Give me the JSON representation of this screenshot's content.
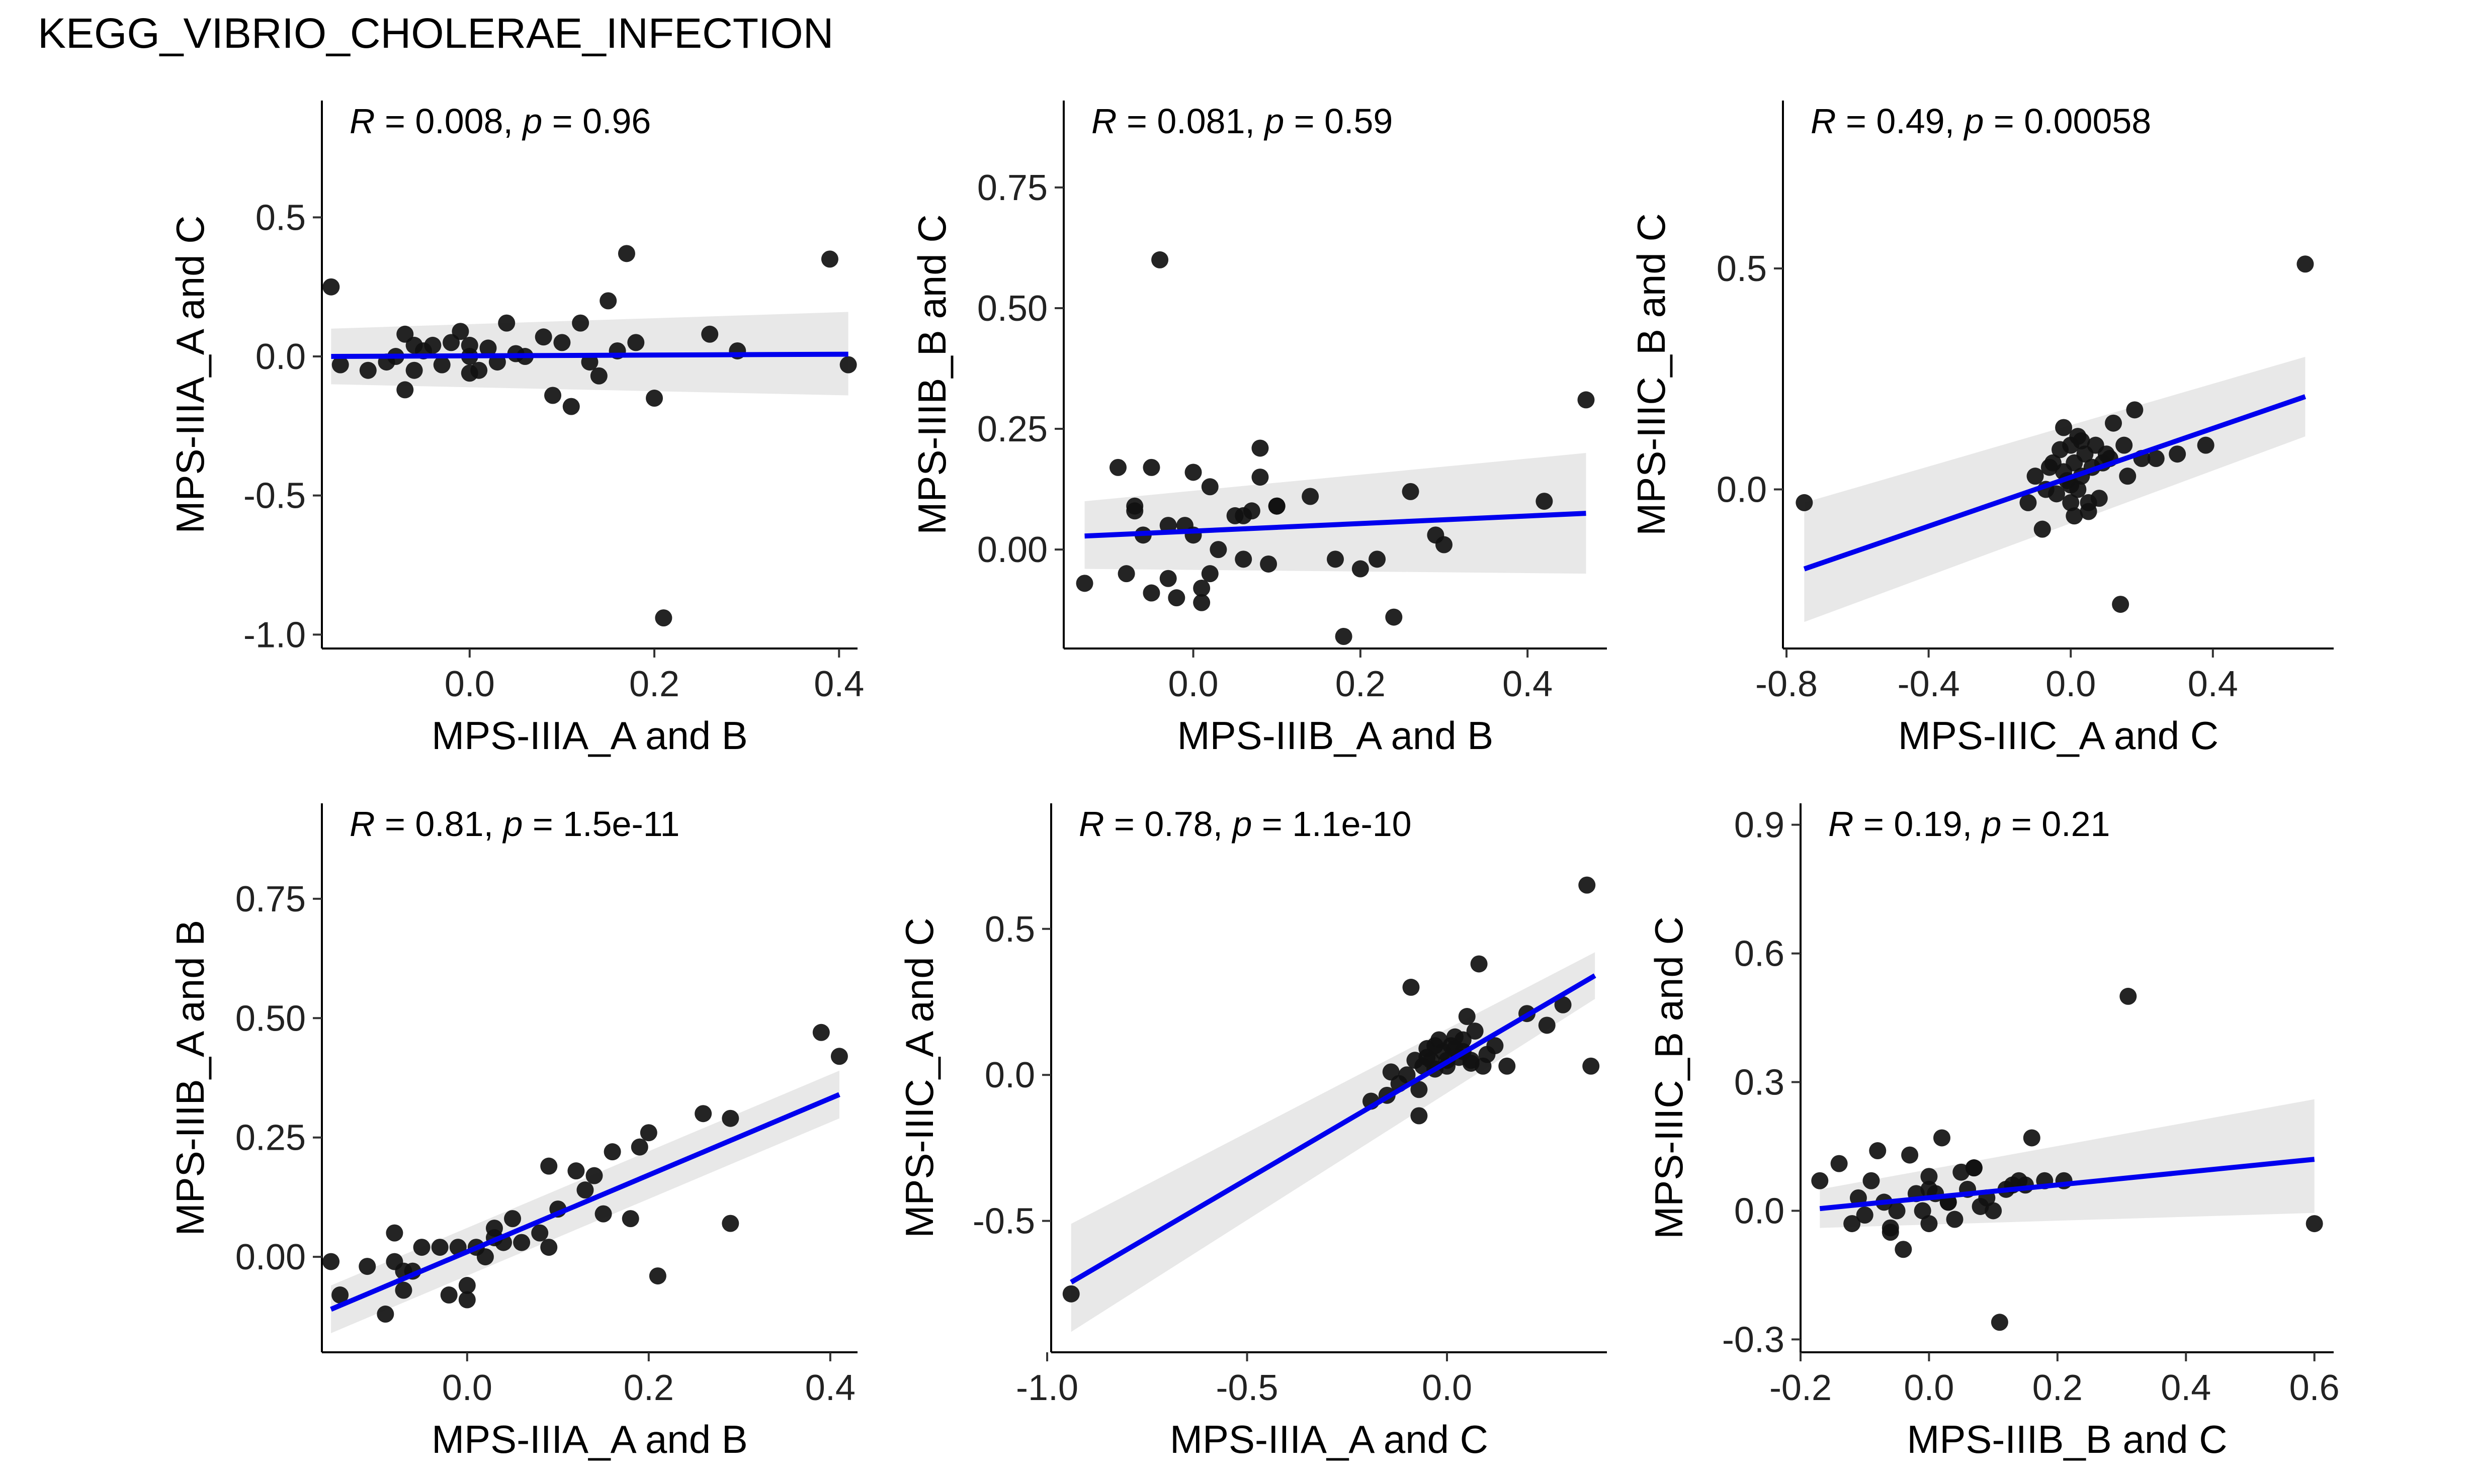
{
  "title": "KEGG_VIBRIO_CHOLERAE_INFECTION",
  "chart_data": [
    {
      "type": "scatter",
      "xlabel": "MPS-IIIA_A and B",
      "ylabel": "MPS-IIIA_A and C",
      "stat": {
        "r_label": "R",
        "r_value": "0.008",
        "p_label": "p",
        "p_value": "0.96"
      },
      "xlim": [
        -0.16,
        0.42
      ],
      "ylim": [
        -1.05,
        0.92
      ],
      "xticks": [
        0.0,
        0.2,
        0.4
      ],
      "xtick_labels": [
        "0.0",
        "0.2",
        "0.4"
      ],
      "yticks": [
        0.5,
        0.0,
        -0.5,
        -1.0
      ],
      "ytick_labels": [
        "0.5",
        "0.0",
        "-0.5",
        "-1.0"
      ],
      "fit": {
        "x": [
          -0.15,
          0.41
        ],
        "y": [
          0.0,
          0.008
        ]
      },
      "band": {
        "upper": [
          0.1,
          0.16
        ],
        "lower": [
          -0.1,
          -0.14
        ]
      },
      "points": {
        "x": [
          -0.15,
          -0.14,
          -0.11,
          -0.09,
          -0.08,
          -0.07,
          -0.07,
          -0.06,
          -0.05,
          -0.04,
          -0.03,
          -0.02,
          -0.01,
          0.0,
          0.0,
          0.01,
          0.02,
          0.03,
          0.04,
          0.05,
          0.08,
          0.09,
          0.1,
          0.11,
          0.12,
          0.13,
          0.15,
          0.16,
          0.17,
          0.18,
          0.2,
          0.21,
          0.26,
          0.29,
          0.39,
          0.41,
          -0.06,
          0.06,
          0.14,
          0.0
        ],
        "y": [
          0.25,
          -0.03,
          -0.05,
          -0.02,
          0.0,
          0.08,
          -0.12,
          -0.05,
          0.02,
          0.04,
          -0.03,
          0.05,
          0.09,
          0.0,
          -0.06,
          -0.05,
          0.03,
          -0.02,
          0.12,
          0.01,
          0.07,
          -0.14,
          0.05,
          -0.18,
          0.12,
          -0.02,
          0.2,
          0.02,
          0.37,
          0.05,
          -0.15,
          -0.94,
          0.08,
          0.02,
          0.35,
          -0.03,
          0.04,
          0.0,
          -0.07,
          0.04
        ]
      }
    },
    {
      "type": "scatter",
      "xlabel": "MPS-IIIB_A and B",
      "ylabel": "MPS-IIIB_B and C",
      "stat": {
        "r_label": "R",
        "r_value": "0.081",
        "p_label": "p",
        "p_value": "0.59"
      },
      "xlim": [
        -0.155,
        0.495
      ],
      "ylim": [
        -0.205,
        0.93
      ],
      "xticks": [
        0.0,
        0.2,
        0.4
      ],
      "xtick_labels": [
        "0.0",
        "0.2",
        "0.4"
      ],
      "yticks": [
        0.75,
        0.5,
        0.25,
        0.0
      ],
      "ytick_labels": [
        "0.75",
        "0.50",
        "0.25",
        "0.00"
      ],
      "fit": {
        "x": [
          -0.13,
          0.47
        ],
        "y": [
          0.028,
          0.075
        ]
      },
      "band": {
        "upper": [
          0.1,
          0.2
        ],
        "lower": [
          -0.04,
          -0.05
        ]
      },
      "points": {
        "x": [
          -0.13,
          -0.09,
          -0.08,
          -0.07,
          -0.06,
          -0.05,
          -0.05,
          -0.04,
          -0.03,
          -0.02,
          -0.01,
          0.0,
          0.0,
          0.01,
          0.01,
          0.02,
          0.03,
          0.05,
          0.06,
          0.07,
          0.08,
          0.08,
          0.09,
          0.1,
          0.14,
          0.17,
          0.18,
          0.2,
          0.22,
          0.24,
          0.26,
          0.29,
          0.3,
          0.42,
          0.47,
          -0.03,
          0.06,
          0.02,
          -0.07,
          0.1
        ],
        "y": [
          -0.07,
          0.17,
          -0.05,
          0.09,
          0.03,
          0.17,
          -0.09,
          0.6,
          -0.06,
          -0.1,
          0.05,
          0.16,
          0.03,
          -0.08,
          -0.11,
          0.13,
          0.0,
          0.07,
          -0.02,
          0.08,
          0.21,
          0.15,
          -0.03,
          0.09,
          0.11,
          -0.02,
          -0.18,
          -0.04,
          -0.02,
          -0.14,
          0.12,
          0.03,
          0.01,
          0.1,
          0.31,
          0.05,
          0.07,
          -0.05,
          0.08,
          0.09
        ]
      }
    },
    {
      "type": "scatter",
      "xlabel": "MPS-IIIC_A and C",
      "ylabel": "MPS-IIIC_B and C",
      "stat": {
        "r_label": "R",
        "r_value": "0.49",
        "p_label": "p",
        "p_value": "0.00058"
      },
      "xlim": [
        -0.81,
        0.74
      ],
      "ylim": [
        -0.36,
        0.88
      ],
      "xticks": [
        -0.8,
        -0.4,
        0.0,
        0.4
      ],
      "xtick_labels": [
        "-0.8",
        "-0.4",
        "0.0",
        "0.4"
      ],
      "yticks": [
        0.5,
        0.0
      ],
      "ytick_labels": [
        "0.5",
        "0.0"
      ],
      "fit": {
        "x": [
          -0.75,
          0.66
        ],
        "y": [
          -0.18,
          0.21
        ]
      },
      "band": {
        "upper": [
          -0.03,
          0.3
        ],
        "lower": [
          -0.3,
          0.12
        ]
      },
      "points": {
        "x": [
          -0.75,
          -0.12,
          -0.1,
          -0.08,
          -0.07,
          -0.06,
          -0.05,
          -0.04,
          -0.03,
          -0.02,
          -0.01,
          0.0,
          0.0,
          0.01,
          0.01,
          0.02,
          0.02,
          0.03,
          0.04,
          0.05,
          0.06,
          0.07,
          0.08,
          0.09,
          0.1,
          0.12,
          0.14,
          0.16,
          0.18,
          0.2,
          0.24,
          0.3,
          0.38,
          0.66,
          -0.02,
          0.05,
          0.0,
          0.11,
          0.15,
          0.03
        ],
        "y": [
          -0.03,
          -0.03,
          0.03,
          -0.09,
          0.0,
          0.05,
          0.06,
          -0.01,
          0.09,
          0.14,
          0.02,
          0.1,
          -0.03,
          0.06,
          -0.06,
          0.12,
          0.0,
          0.03,
          0.08,
          -0.05,
          0.05,
          0.1,
          -0.02,
          0.06,
          0.08,
          0.15,
          -0.26,
          0.03,
          0.18,
          0.07,
          0.07,
          0.08,
          0.1,
          0.51,
          0.04,
          -0.03,
          0.01,
          0.07,
          0.1,
          0.11
        ]
      }
    },
    {
      "type": "scatter",
      "xlabel": "MPS-IIIA_A and B",
      "ylabel": "MPS-IIIB_A and B",
      "stat": {
        "r_label": "R",
        "r_value": "0.81",
        "p_label": "p",
        "p_value": "1.5e-11"
      },
      "xlim": [
        -0.16,
        0.43
      ],
      "ylim": [
        -0.2,
        0.95
      ],
      "xticks": [
        0.0,
        0.2,
        0.4
      ],
      "xtick_labels": [
        "0.0",
        "0.2",
        "0.4"
      ],
      "yticks": [
        0.75,
        0.5,
        0.25,
        0.0
      ],
      "ytick_labels": [
        "0.75",
        "0.50",
        "0.25",
        "0.00"
      ],
      "fit": {
        "x": [
          -0.15,
          0.41
        ],
        "y": [
          -0.11,
          0.34
        ]
      },
      "band": {
        "upper": [
          -0.06,
          0.39
        ],
        "lower": [
          -0.16,
          0.29
        ]
      },
      "points": {
        "x": [
          -0.15,
          -0.14,
          -0.11,
          -0.09,
          -0.08,
          -0.07,
          -0.07,
          -0.06,
          -0.05,
          -0.03,
          -0.02,
          -0.01,
          0.0,
          0.0,
          0.01,
          0.02,
          0.03,
          0.04,
          0.05,
          0.06,
          0.08,
          0.09,
          0.09,
          0.1,
          0.12,
          0.13,
          0.14,
          0.15,
          0.16,
          0.18,
          0.19,
          0.2,
          0.21,
          0.26,
          0.29,
          0.29,
          0.39,
          0.41,
          -0.08,
          0.03
        ],
        "y": [
          -0.01,
          -0.08,
          -0.02,
          -0.12,
          0.05,
          -0.07,
          -0.03,
          -0.03,
          0.02,
          0.02,
          -0.08,
          0.02,
          -0.06,
          -0.09,
          0.02,
          0.0,
          0.06,
          0.03,
          0.08,
          0.03,
          0.05,
          0.02,
          0.19,
          0.1,
          0.18,
          0.14,
          0.17,
          0.09,
          0.22,
          0.08,
          0.23,
          0.26,
          -0.04,
          0.3,
          0.07,
          0.29,
          0.47,
          0.42,
          -0.01,
          0.04
        ]
      }
    },
    {
      "type": "scatter",
      "xlabel": "MPS-IIIA_A and C",
      "ylabel": "MPS-IIIC_A and C",
      "stat": {
        "r_label": "R",
        "r_value": "0.78",
        "p_label": "p",
        "p_value": "1.1e-10"
      },
      "xlim": [
        -0.99,
        0.4
      ],
      "ylim": [
        -0.95,
        0.93
      ],
      "xticks": [
        -1.0,
        -0.5,
        0.0
      ],
      "xtick_labels": [
        "-1.0",
        "-0.5",
        "0.0"
      ],
      "yticks": [
        0.5,
        0.0,
        -0.5
      ],
      "ytick_labels": [
        "0.5",
        "0.0",
        "-0.5"
      ],
      "fit": {
        "x": [
          -0.94,
          0.37
        ],
        "y": [
          -0.71,
          0.34
        ]
      },
      "band": {
        "upper": [
          -0.51,
          0.42
        ],
        "lower": [
          -0.88,
          0.26
        ]
      },
      "points": {
        "x": [
          -0.94,
          -0.19,
          -0.15,
          -0.14,
          -0.12,
          -0.1,
          -0.09,
          -0.08,
          -0.07,
          -0.06,
          -0.05,
          -0.04,
          -0.03,
          -0.02,
          -0.01,
          0.0,
          0.01,
          0.02,
          0.03,
          0.04,
          0.05,
          0.06,
          0.07,
          0.08,
          0.09,
          0.1,
          0.12,
          0.15,
          0.2,
          0.25,
          0.29,
          0.35,
          0.36,
          -0.07,
          -0.03,
          0.0,
          0.04,
          -0.05,
          0.02,
          0.06
        ],
        "y": [
          -0.75,
          -0.09,
          -0.07,
          0.01,
          -0.03,
          0.0,
          0.3,
          0.05,
          -0.14,
          0.03,
          0.09,
          0.05,
          0.02,
          0.12,
          0.08,
          0.05,
          0.1,
          0.13,
          0.06,
          0.08,
          0.2,
          0.04,
          0.15,
          0.38,
          0.03,
          0.07,
          0.1,
          0.03,
          0.21,
          0.17,
          0.24,
          0.65,
          0.03,
          -0.05,
          0.1,
          0.03,
          0.12,
          0.06,
          0.09,
          0.05
        ]
      }
    },
    {
      "type": "scatter",
      "xlabel": "MPS-IIIB_B and C",
      "ylabel": "MPS-IIIC_B and C",
      "stat": {
        "r_label": "R",
        "r_value": "0.19",
        "p_label": "p",
        "p_value": "0.21"
      },
      "xlim": [
        -0.2,
        0.63
      ],
      "ylim": [
        -0.33,
        0.95
      ],
      "xticks": [
        -0.2,
        0.0,
        0.2,
        0.4,
        0.6
      ],
      "xtick_labels": [
        "-0.2",
        "0.0",
        "0.2",
        "0.4",
        "0.6"
      ],
      "yticks": [
        0.9,
        0.6,
        0.3,
        0.0,
        -0.3
      ],
      "ytick_labels": [
        "0.9",
        "0.6",
        "0.3",
        "0.0",
        "-0.3"
      ],
      "fit": {
        "x": [
          -0.17,
          0.6
        ],
        "y": [
          0.005,
          0.12
        ]
      },
      "band": {
        "upper": [
          0.05,
          0.26
        ],
        "lower": [
          -0.04,
          -0.005
        ]
      },
      "points": {
        "x": [
          -0.17,
          -0.14,
          -0.12,
          -0.11,
          -0.09,
          -0.08,
          -0.07,
          -0.06,
          -0.05,
          -0.04,
          -0.03,
          -0.02,
          -0.01,
          0.0,
          0.0,
          0.01,
          0.02,
          0.03,
          0.04,
          0.05,
          0.06,
          0.07,
          0.08,
          0.09,
          0.1,
          0.11,
          0.12,
          0.14,
          0.15,
          0.16,
          0.18,
          0.21,
          0.31,
          0.6,
          -0.1,
          0.0,
          0.07,
          -0.06,
          0.03,
          0.13
        ],
        "y": [
          0.07,
          0.11,
          -0.03,
          0.03,
          0.07,
          0.14,
          0.02,
          -0.05,
          0.0,
          -0.09,
          0.13,
          0.04,
          0.0,
          0.08,
          -0.03,
          0.04,
          0.17,
          0.02,
          -0.02,
          0.09,
          0.05,
          0.1,
          0.01,
          0.03,
          0.0,
          -0.26,
          0.05,
          0.07,
          0.06,
          0.17,
          0.07,
          0.07,
          0.5,
          -0.03,
          -0.01,
          0.05,
          0.1,
          -0.04,
          0.02,
          0.06
        ]
      }
    }
  ]
}
